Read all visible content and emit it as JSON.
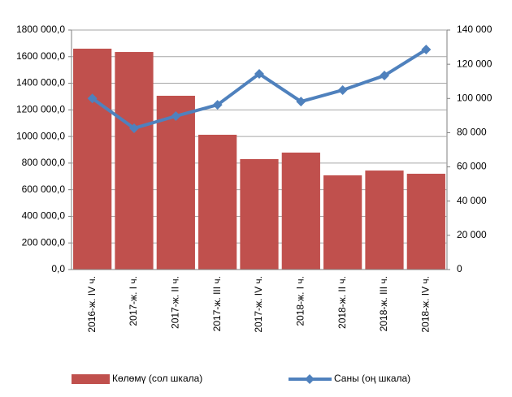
{
  "chart_data": {
    "type": "bar-line",
    "categories": [
      "2016-ж. IV ч.",
      "2017-ж. I ч.",
      "2017-ж. II ч.",
      "2017-ж. III ч.",
      "2017-ж. IV ч.",
      "2018-ж. I ч.",
      "2018-ж. II ч.",
      "2018-ж. III ч.",
      "2018-ж. IV ч."
    ],
    "series": [
      {
        "name": "Көлөмү (сол шкала)",
        "type": "bar",
        "color": "#c0504d",
        "values": [
          1660000,
          1635000,
          1306000,
          1013000,
          830000,
          879000,
          708000,
          744000,
          720000
        ]
      },
      {
        "name": "Саны (оң шкала)",
        "type": "line",
        "axis": "y2",
        "color": "#4f81bd",
        "values": [
          100000,
          82600,
          89700,
          96300,
          114400,
          98200,
          104900,
          113400,
          128600
        ]
      }
    ],
    "ylim": [
      0,
      1800000
    ],
    "yticks": [
      {
        "value": 0,
        "label": "0,0"
      },
      {
        "value": 200000,
        "label": "200 000,0"
      },
      {
        "value": 400000,
        "label": "400 000,0"
      },
      {
        "value": 600000,
        "label": "600 000,0"
      },
      {
        "value": 800000,
        "label": "800 000,0"
      },
      {
        "value": 1000000,
        "label": "1000 000,0"
      },
      {
        "value": 1200000,
        "label": "1200 000,0"
      },
      {
        "value": 1400000,
        "label": "1400 000,0"
      },
      {
        "value": 1600000,
        "label": "1600 000,0"
      },
      {
        "value": 1800000,
        "label": "1800 000,0"
      }
    ],
    "y2lim": [
      0,
      140000
    ],
    "y2ticks": [
      0,
      {
        "value": 20000,
        "label": "20 000"
      },
      {
        "value": 40000,
        "label": "40 000"
      },
      {
        "value": 60000,
        "label": "60 000"
      },
      {
        "value": 80000,
        "label": "80 000"
      },
      {
        "value": 100000,
        "label": "100 000"
      },
      {
        "value": 120000,
        "label": "120 000"
      },
      {
        "value": 140000,
        "label": "140 000"
      }
    ],
    "grid": true,
    "legend": "bottom"
  }
}
